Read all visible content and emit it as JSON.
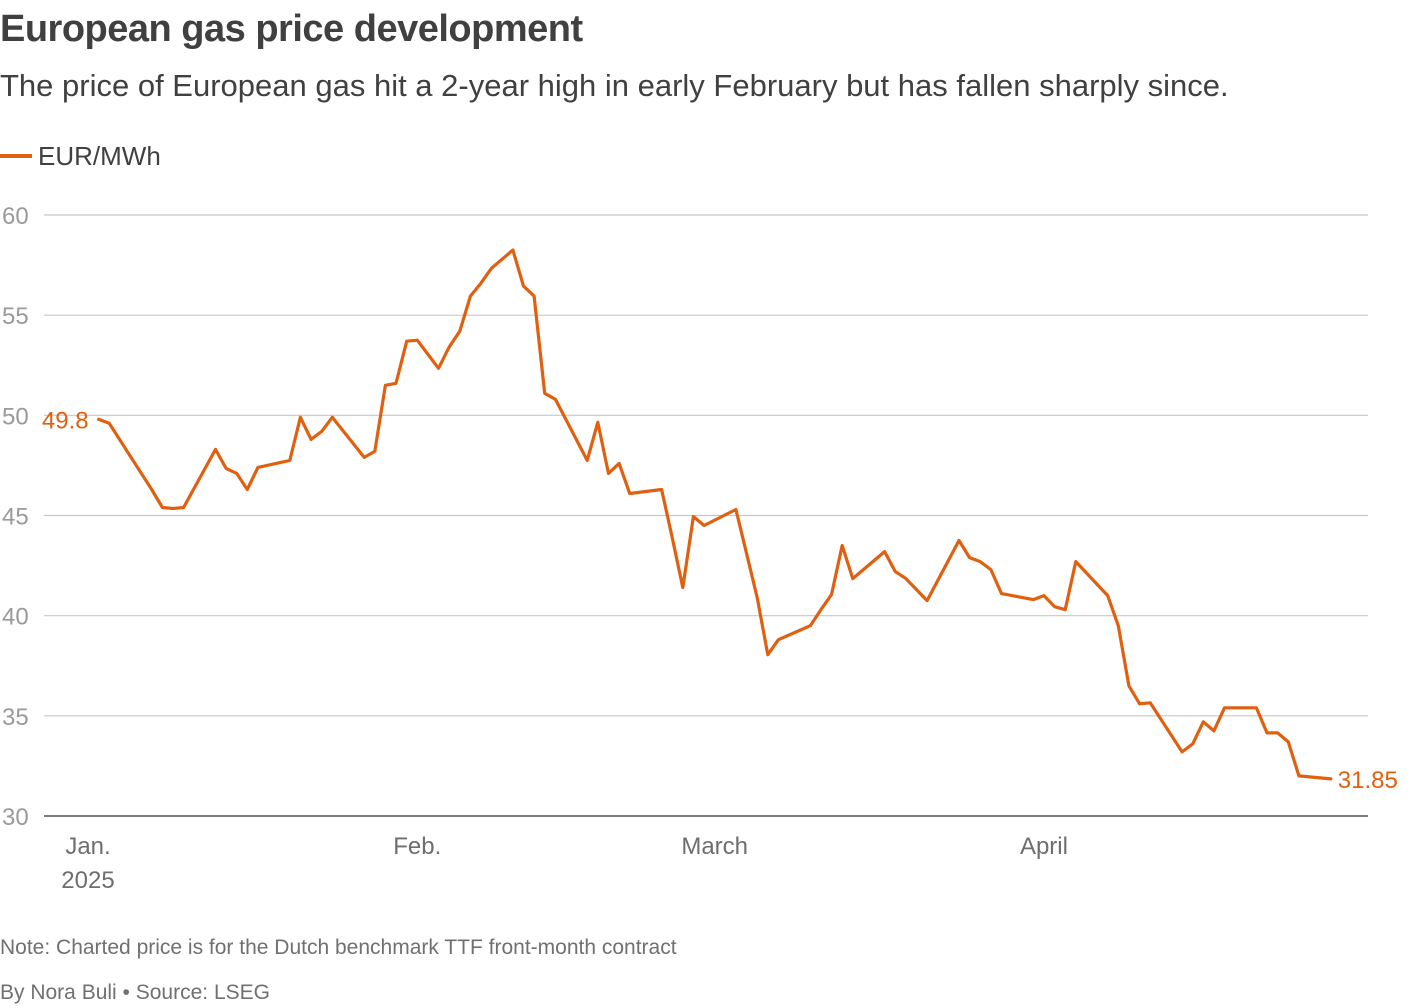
{
  "header": {
    "title": "European gas price development",
    "subtitle": "The price of European gas hit a 2-year high in early February but has fallen sharply since."
  },
  "legend": {
    "label": "EUR/MWh"
  },
  "colors": {
    "series": "#e06010",
    "grid": "#c8c8c8",
    "axis": "#555555",
    "tick_label": "#9a9a9a",
    "x_label": "#6e6e6e"
  },
  "footer": {
    "note": "Note: Charted price is for the Dutch benchmark TTF front-month contract",
    "byline": "By Nora Buli • Source: LSEG"
  },
  "chart_data": {
    "type": "line",
    "title": "European gas price development",
    "ylabel": "EUR/MWh",
    "ylim": [
      30,
      60
    ],
    "yticks": [
      30,
      35,
      40,
      45,
      50,
      55,
      60
    ],
    "x_domain": [
      0,
      119
    ],
    "xticks": [
      {
        "day": 0,
        "label": "Jan.",
        "sublabel": "2025"
      },
      {
        "day": 31,
        "label": "Feb.",
        "sublabel": ""
      },
      {
        "day": 59,
        "label": "March",
        "sublabel": ""
      },
      {
        "day": 90,
        "label": "April",
        "sublabel": ""
      }
    ],
    "start_label": "49.8",
    "end_label": "31.85",
    "series": [
      {
        "name": "EUR/MWh",
        "x": [
          1,
          2,
          6,
          7,
          8,
          9,
          12,
          13,
          14,
          15,
          16,
          19,
          20,
          21,
          22,
          23,
          26,
          27,
          28,
          29,
          30,
          31,
          33,
          34,
          35,
          36,
          37,
          38,
          40,
          41,
          42,
          43,
          44,
          47,
          48,
          49,
          50,
          51,
          54,
          55,
          56,
          57,
          58,
          61,
          62,
          63,
          64,
          65,
          68,
          69,
          70,
          71,
          72,
          75,
          76,
          77,
          78,
          79,
          82,
          83,
          84,
          85,
          86,
          89,
          90,
          91,
          92,
          93,
          96,
          97,
          98,
          99,
          100,
          103,
          104,
          105,
          106,
          107,
          110,
          111,
          112,
          113,
          114,
          117
        ],
        "values": [
          49.8,
          49.6,
          46.3,
          45.4,
          45.35,
          45.4,
          48.3,
          47.35,
          47.1,
          46.3,
          47.4,
          47.75,
          49.9,
          48.8,
          49.2,
          49.9,
          47.9,
          48.2,
          51.5,
          51.6,
          53.7,
          53.75,
          52.35,
          53.4,
          54.2,
          55.95,
          56.6,
          57.35,
          58.25,
          56.45,
          55.95,
          51.1,
          50.8,
          47.75,
          49.65,
          47.1,
          47.6,
          46.1,
          46.3,
          43.9,
          41.4,
          44.95,
          44.5,
          45.3,
          43.1,
          40.9,
          38.05,
          38.8,
          39.5,
          40.3,
          41.05,
          43.5,
          41.85,
          43.2,
          42.2,
          41.85,
          41.3,
          40.75,
          43.75,
          42.9,
          42.7,
          42.3,
          41.1,
          40.8,
          41.0,
          40.45,
          40.3,
          42.7,
          41,
          39.5,
          36.5,
          35.6,
          35.65,
          33.2,
          33.6,
          34.7,
          34.25,
          35.4,
          35.4,
          34.15,
          34.15,
          33.7,
          32.0,
          31.85
        ]
      }
    ]
  }
}
